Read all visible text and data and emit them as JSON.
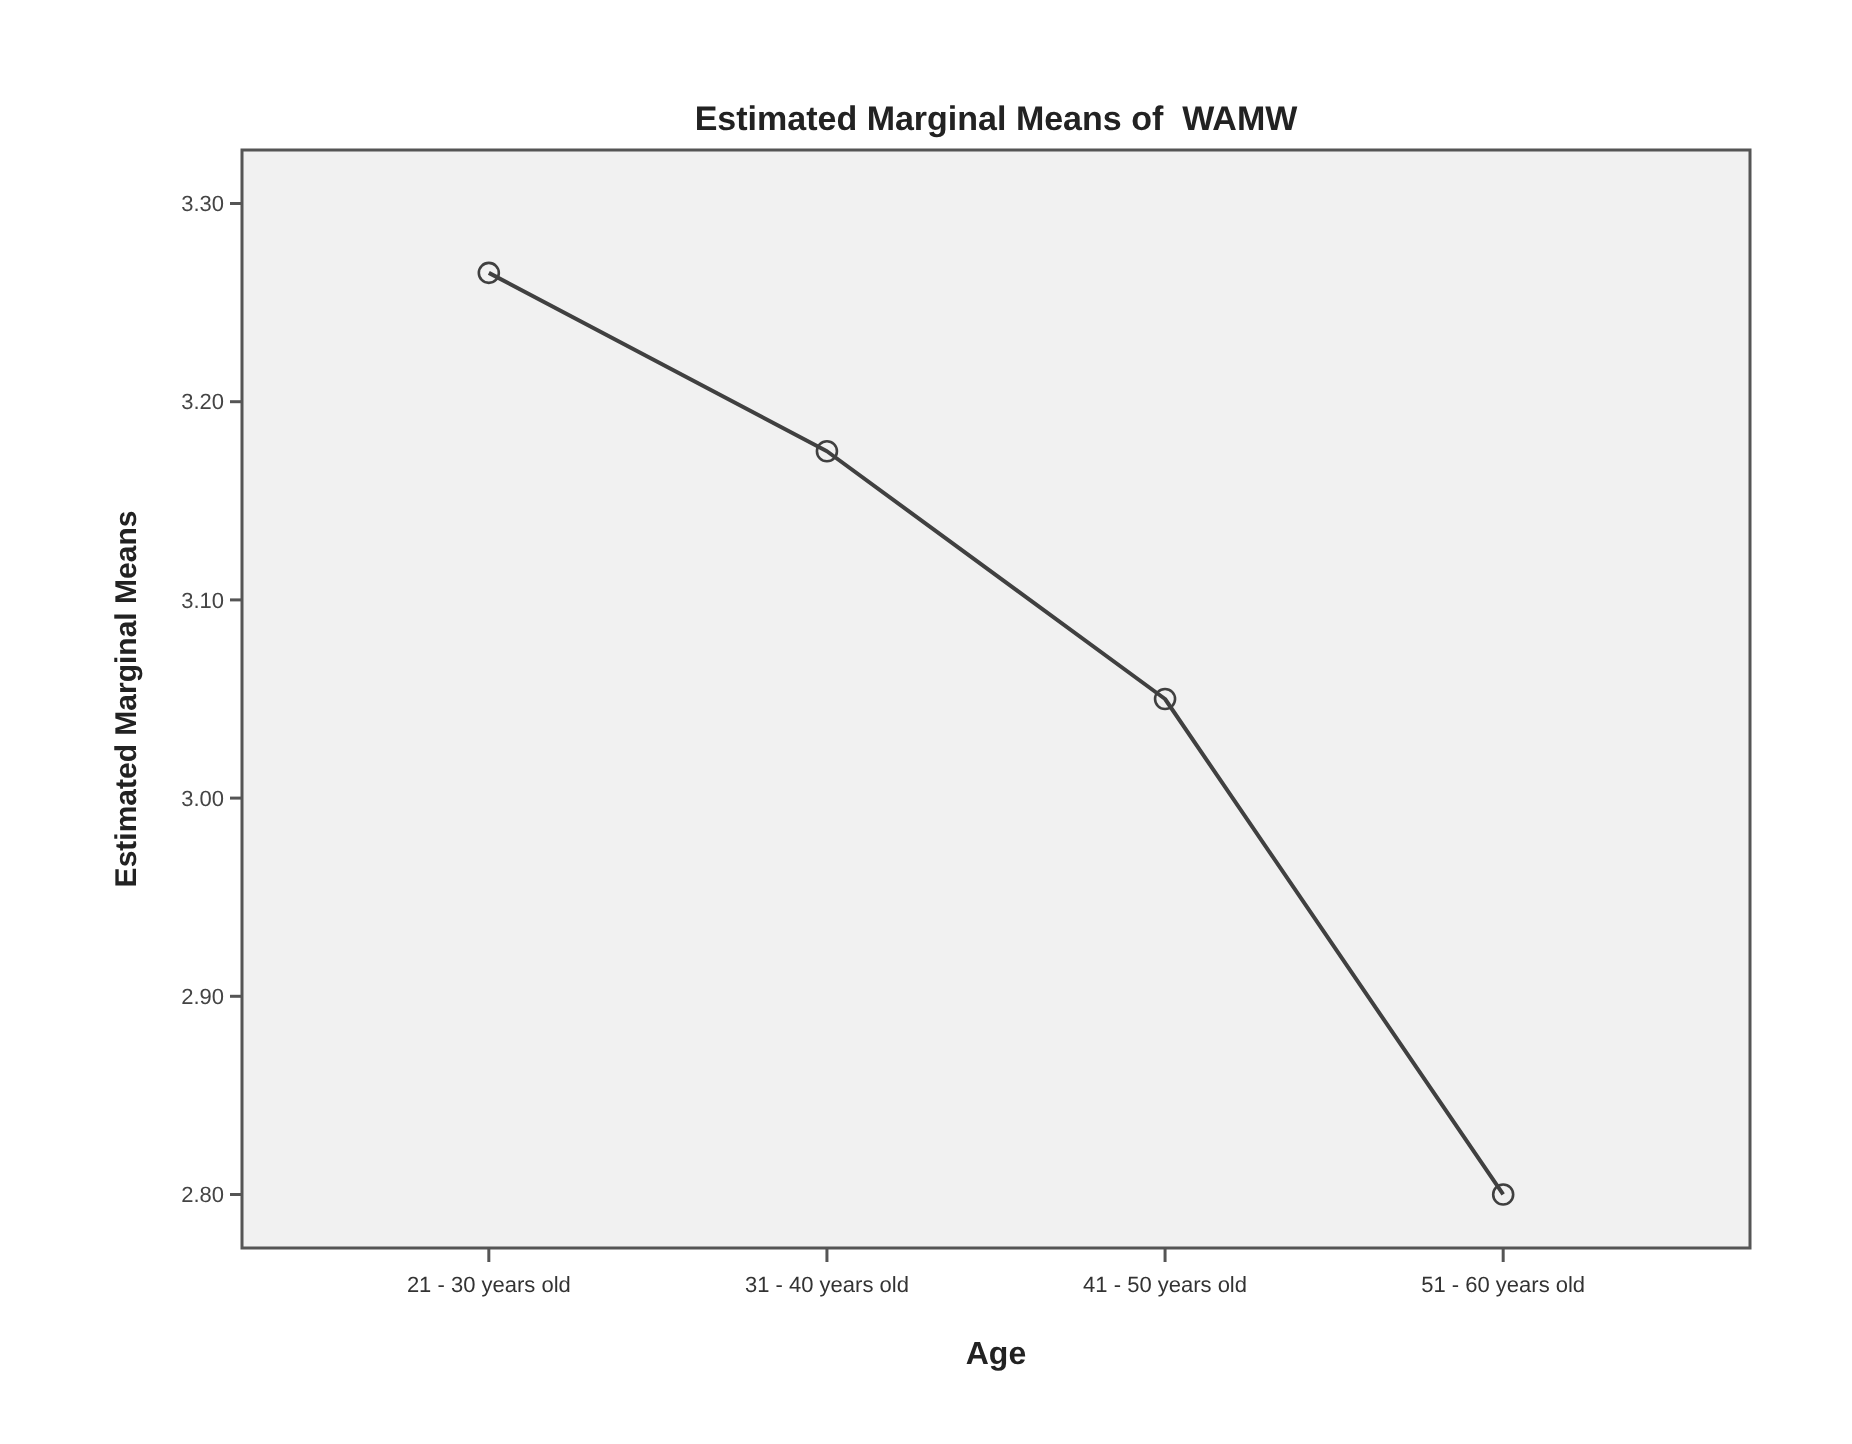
{
  "chart_data": {
    "type": "line",
    "title": "Estimated Marginal Means of  WAMW",
    "xlabel": "Age",
    "ylabel": "Estimated Marginal Means",
    "categories": [
      "21 - 30 years old",
      "31 - 40 years old",
      "41 - 50 years old",
      "51 - 60 years old"
    ],
    "series": [
      {
        "color": "#404040",
        "values": [
          3.265,
          3.175,
          3.05,
          2.8
        ]
      }
    ],
    "ylim": [
      2.773,
      3.327
    ],
    "yticks": [
      {
        "value": 2.8,
        "label": "2.80"
      },
      {
        "value": 2.9,
        "label": "2.90"
      },
      {
        "value": 3.0,
        "label": "3.00"
      },
      {
        "value": 3.1,
        "label": "3.10"
      },
      {
        "value": 3.2,
        "label": "3.20"
      },
      {
        "value": 3.3,
        "label": "3.30"
      }
    ],
    "marker": "circle",
    "line_style": "solid"
  }
}
